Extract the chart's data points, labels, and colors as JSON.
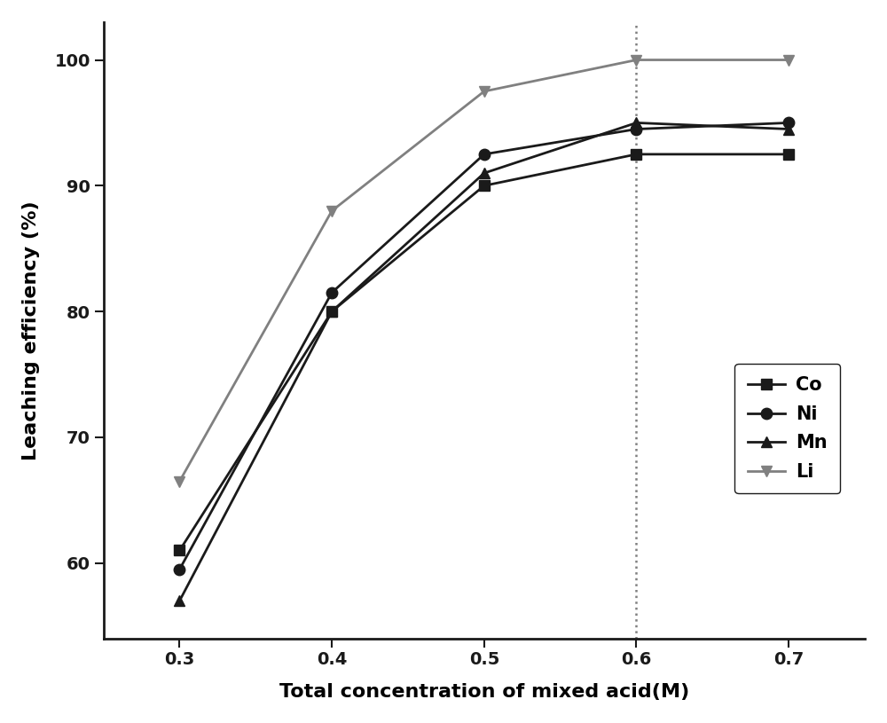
{
  "x": [
    0.3,
    0.4,
    0.5,
    0.6,
    0.7
  ],
  "Co": [
    61,
    80,
    90,
    92.5,
    92.5
  ],
  "Ni": [
    59.5,
    81.5,
    92.5,
    94.5,
    95
  ],
  "Mn": [
    57,
    80,
    91,
    95,
    94.5
  ],
  "Li": [
    66.5,
    88,
    97.5,
    100,
    100
  ],
  "xlabel": "Total concentration of mixed acid(M)",
  "ylabel": "Leaching efficiency (%)",
  "ylim": [
    54,
    103
  ],
  "xlim": [
    0.25,
    0.75
  ],
  "yticks": [
    60,
    70,
    80,
    90,
    100
  ],
  "xticks": [
    0.3,
    0.4,
    0.5,
    0.6,
    0.7
  ],
  "vline_x": 0.6,
  "legend_labels": [
    "Co",
    "Ni",
    "Mn",
    "Li"
  ],
  "dark_color": "#1a1a1a",
  "grey_color": "#808080",
  "background_color": "#ffffff",
  "label_fontsize": 16,
  "tick_fontsize": 14,
  "legend_fontsize": 15
}
